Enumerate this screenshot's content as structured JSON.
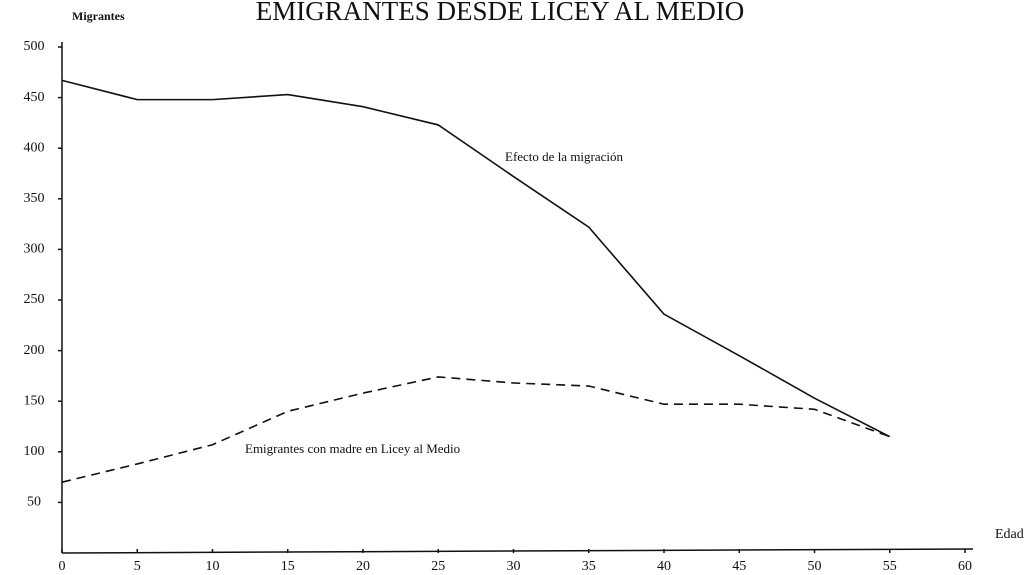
{
  "chart_data": {
    "type": "line",
    "title": "EMIGRANTES DESDE LICEY AL MEDIO",
    "y_label": "Migrantes",
    "x_label": "Edad",
    "x": [
      0,
      5,
      10,
      15,
      20,
      25,
      30,
      35,
      40,
      45,
      50,
      55
    ],
    "series": [
      {
        "name": "Efecto de la migración",
        "color": "#111111",
        "dash": "none",
        "values": [
          467,
          448,
          448,
          453,
          441,
          423,
          372,
          322,
          236,
          195,
          153,
          115
        ]
      },
      {
        "name": "Emigrantes con madre en Licey al Medio",
        "color": "#111111",
        "dash": "9 6",
        "values": [
          70,
          88,
          107,
          140,
          158,
          174,
          168,
          165,
          147,
          147,
          142,
          115
        ]
      }
    ],
    "xlim": [
      0,
      60
    ],
    "xticks": [
      0,
      5,
      10,
      15,
      20,
      25,
      30,
      35,
      40,
      45,
      50,
      55,
      60
    ],
    "ylim": [
      0,
      500
    ],
    "yticks": [
      50,
      100,
      150,
      200,
      250,
      300,
      350,
      400,
      450,
      500
    ],
    "grid": false
  }
}
